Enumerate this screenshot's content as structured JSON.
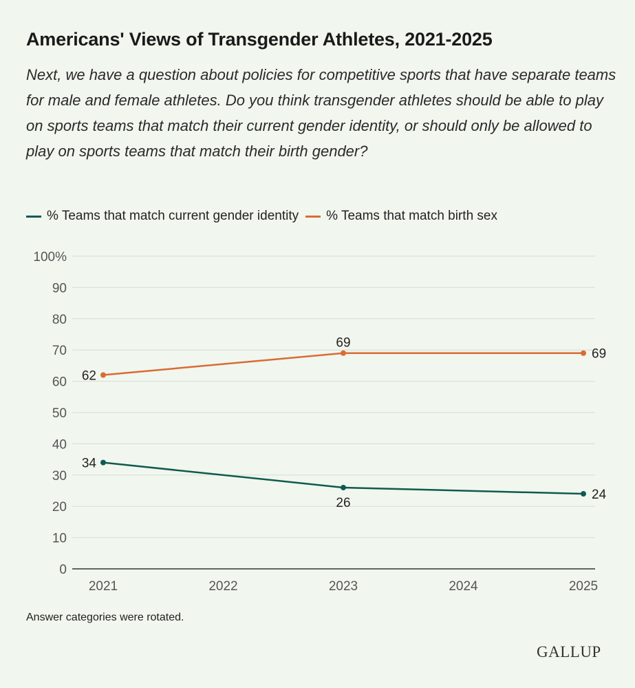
{
  "title": "Americans' Views of Transgender Athletes, 2021-2025",
  "subtitle": "Next, we have a question about policies for competitive sports that have separate teams for male and female athletes. Do you think transgender athletes should be able to play on sports teams that match their current gender identity, or should only be allowed to play on sports teams that match their birth gender?",
  "note": "Answer categories were rotated.",
  "logo": "GALLUP",
  "colors": {
    "series1": "#0f5a4f",
    "series2": "#d96b33",
    "grid": "#d6ddd4",
    "axis": "#333333"
  },
  "chart_data": {
    "type": "line",
    "x": [
      "2021",
      "2022",
      "2023",
      "2024",
      "2025"
    ],
    "ylim": [
      0,
      100
    ],
    "yticks": [
      "0",
      "10",
      "20",
      "30",
      "40",
      "50",
      "60",
      "70",
      "80",
      "90",
      "100%"
    ],
    "series": [
      {
        "name": "% Teams that match current gender identity",
        "points": [
          {
            "x": "2021",
            "y": 34
          },
          {
            "x": "2023",
            "y": 26
          },
          {
            "x": "2025",
            "y": 24
          }
        ]
      },
      {
        "name": "% Teams that match birth sex",
        "points": [
          {
            "x": "2021",
            "y": 62
          },
          {
            "x": "2023",
            "y": 69
          },
          {
            "x": "2025",
            "y": 69
          }
        ]
      }
    ],
    "grid": true,
    "legend": "top-left"
  }
}
